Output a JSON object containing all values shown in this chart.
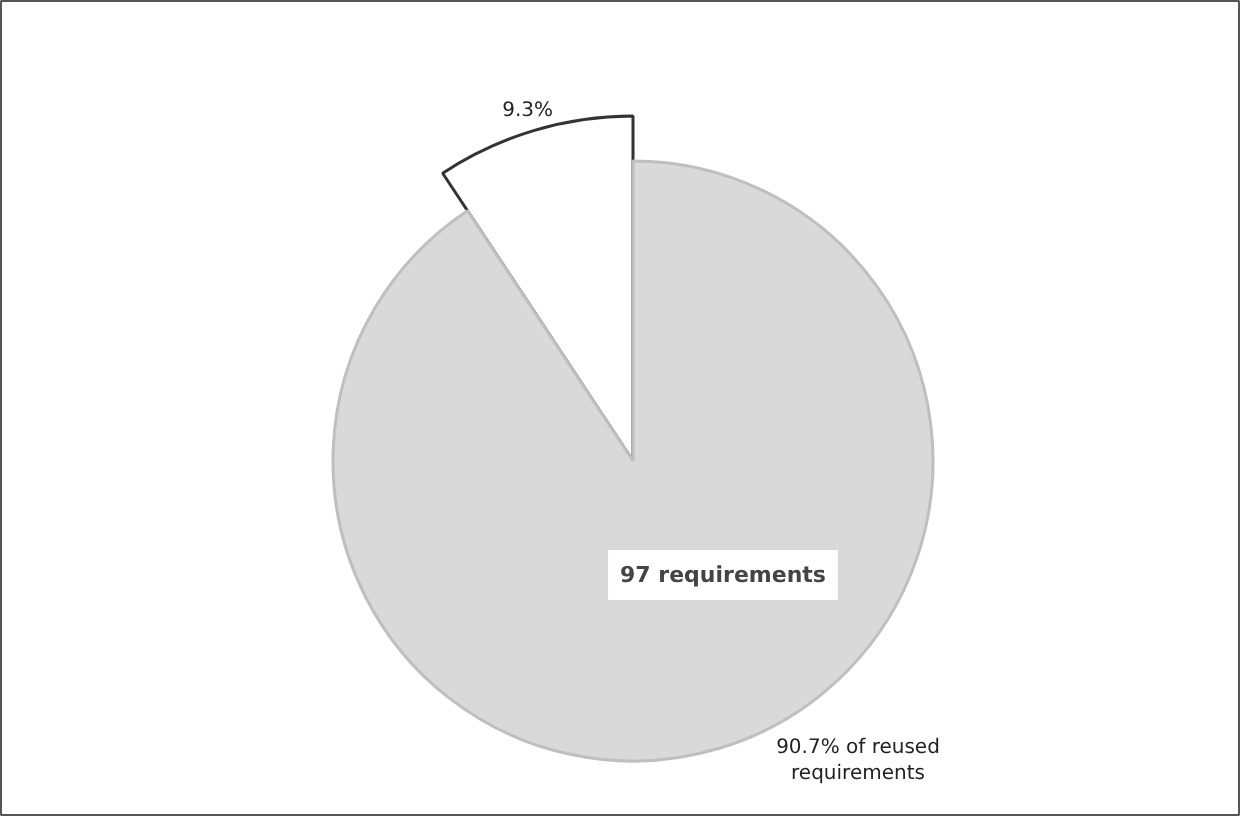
{
  "chart_data": {
    "type": "pie",
    "categories": [
      null,
      null
    ],
    "values": [
      9.3,
      90.7
    ],
    "colors": [
      "#ffffff",
      "#d9d9d9"
    ],
    "value_labels": [
      "9.3%",
      "90.7% of reused requirements"
    ],
    "annotations": [
      "97 requirements"
    ]
  }
}
